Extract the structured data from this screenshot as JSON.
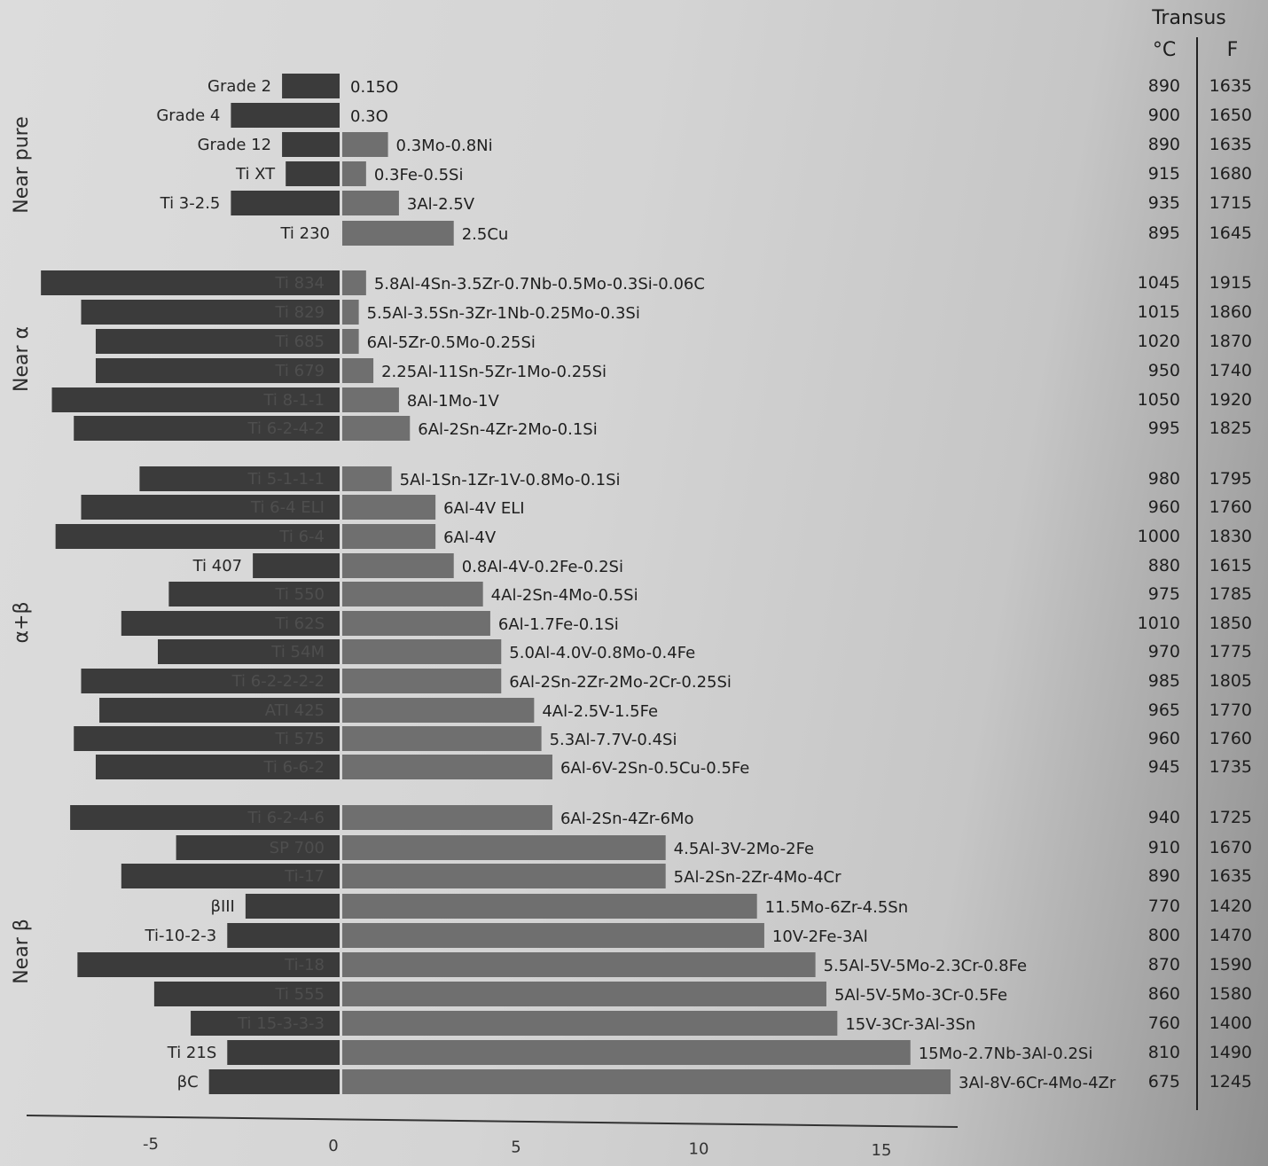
{
  "chart_data": {
    "type": "bar",
    "orientation": "horizontal-diverging",
    "xlim": [
      -8.2,
      17.2
    ],
    "x_ticks": [
      -5,
      0,
      5,
      10,
      15
    ],
    "transus_header": "Transus",
    "transus_units": [
      "°C",
      "F"
    ],
    "colors": {
      "left_bar": "#3b3b3b",
      "right_bar": "#6f6f6f"
    },
    "groups": [
      {
        "label": "Near pure",
        "rows": [
          {
            "name": "Grade 2",
            "left": -1.6,
            "right": 0,
            "composition": "0.15O",
            "transus_c": "890",
            "transus_f": "1635"
          },
          {
            "name": "Grade 4",
            "left": -3.0,
            "right": 0,
            "composition": "0.3O",
            "transus_c": "900",
            "transus_f": "1650"
          },
          {
            "name": "Grade 12",
            "left": -1.6,
            "right": 1.3,
            "composition": "0.3Mo-0.8Ni",
            "transus_c": "890",
            "transus_f": "1635"
          },
          {
            "name": "Ti XT",
            "left": -1.5,
            "right": 0.7,
            "composition": "0.3Fe-0.5Si",
            "transus_c": "915",
            "transus_f": "1680"
          },
          {
            "name": "Ti 3-2.5",
            "left": -3.0,
            "right": 1.6,
            "composition": "3Al-2.5V",
            "transus_c": "935",
            "transus_f": "1715"
          },
          {
            "name": "Ti 230",
            "left": 0,
            "right": 3.1,
            "composition": "2.5Cu",
            "transus_c": "895",
            "transus_f": "1645"
          }
        ]
      },
      {
        "label": "Near α",
        "rows": [
          {
            "name": "Ti 834",
            "left": -8.2,
            "right": 0.7,
            "composition": "5.8Al-4Sn-3.5Zr-0.7Nb-0.5Mo-0.3Si-0.06C",
            "transus_c": "1045",
            "transus_f": "1915"
          },
          {
            "name": "Ti 829",
            "left": -7.1,
            "right": 0.5,
            "composition": "5.5Al-3.5Sn-3Zr-1Nb-0.25Mo-0.3Si",
            "transus_c": "1015",
            "transus_f": "1860"
          },
          {
            "name": "Ti 685",
            "left": -6.7,
            "right": 0.5,
            "composition": "6Al-5Zr-0.5Mo-0.25Si",
            "transus_c": "1020",
            "transus_f": "1870"
          },
          {
            "name": "Ti 679",
            "left": -6.7,
            "right": 0.9,
            "composition": "2.25Al-11Sn-5Zr-1Mo-0.25Si",
            "transus_c": "950",
            "transus_f": "1740"
          },
          {
            "name": "Ti 8-1-1",
            "left": -7.9,
            "right": 1.6,
            "composition": "8Al-1Mo-1V",
            "transus_c": "1050",
            "transus_f": "1920"
          },
          {
            "name": "Ti 6-2-4-2",
            "left": -7.3,
            "right": 1.9,
            "composition": "6Al-2Sn-4Zr-2Mo-0.1Si",
            "transus_c": "995",
            "transus_f": "1825"
          }
        ]
      },
      {
        "label": "α+β",
        "rows": [
          {
            "name": "Ti 5-1-1-1",
            "left": -5.5,
            "right": 1.4,
            "composition": "5Al-1Sn-1Zr-1V-0.8Mo-0.1Si",
            "transus_c": "980",
            "transus_f": "1795"
          },
          {
            "name": "Ti 6-4 ELI",
            "left": -7.1,
            "right": 2.6,
            "composition": "6Al-4V ELI",
            "transus_c": "960",
            "transus_f": "1760"
          },
          {
            "name": "Ti 6-4",
            "left": -7.8,
            "right": 2.6,
            "composition": "6Al-4V",
            "transus_c": "1000",
            "transus_f": "1830"
          },
          {
            "name": "Ti 407",
            "left": -2.4,
            "right": 3.1,
            "composition": "0.8Al-4V-0.2Fe-0.2Si",
            "transus_c": "880",
            "transus_f": "1615"
          },
          {
            "name": "Ti 550",
            "left": -4.7,
            "right": 3.9,
            "composition": "4Al-2Sn-4Mo-0.5Si",
            "transus_c": "975",
            "transus_f": "1785"
          },
          {
            "name": "Ti 62S",
            "left": -6.0,
            "right": 4.1,
            "composition": "6Al-1.7Fe-0.1Si",
            "transus_c": "1010",
            "transus_f": "1850"
          },
          {
            "name": "Ti 54M",
            "left": -5.0,
            "right": 4.4,
            "composition": "5.0Al-4.0V-0.8Mo-0.4Fe",
            "transus_c": "970",
            "transus_f": "1775"
          },
          {
            "name": "Ti 6-2-2-2-2",
            "left": -7.1,
            "right": 4.4,
            "composition": "6Al-2Sn-2Zr-2Mo-2Cr-0.25Si",
            "transus_c": "985",
            "transus_f": "1805"
          },
          {
            "name": "ATI 425",
            "left": -6.6,
            "right": 5.3,
            "composition": "4Al-2.5V-1.5Fe",
            "transus_c": "965",
            "transus_f": "1770"
          },
          {
            "name": "Ti 575",
            "left": -7.3,
            "right": 5.5,
            "composition": "5.3Al-7.7V-0.4Si",
            "transus_c": "960",
            "transus_f": "1760"
          },
          {
            "name": "Ti 6-6-2",
            "left": -6.7,
            "right": 5.8,
            "composition": "6Al-6V-2Sn-0.5Cu-0.5Fe",
            "transus_c": "945",
            "transus_f": "1735"
          }
        ]
      },
      {
        "label": "Near β",
        "rows": [
          {
            "name": "Ti 6-2-4-6",
            "left": -7.4,
            "right": 5.8,
            "composition": "6Al-2Sn-4Zr-6Mo",
            "transus_c": "940",
            "transus_f": "1725"
          },
          {
            "name": "SP 700",
            "left": -4.5,
            "right": 8.9,
            "composition": "4.5Al-3V-2Mo-2Fe",
            "transus_c": "910",
            "transus_f": "1670"
          },
          {
            "name": "Ti-17",
            "left": -6.0,
            "right": 8.9,
            "composition": "5Al-2Sn-2Zr-4Mo-4Cr",
            "transus_c": "890",
            "transus_f": "1635"
          },
          {
            "name": "βIII",
            "left": -2.6,
            "right": 11.4,
            "composition": "11.5Mo-6Zr-4.5Sn",
            "transus_c": "770",
            "transus_f": "1420"
          },
          {
            "name": "Ti-10-2-3",
            "left": -3.1,
            "right": 11.6,
            "composition": "10V-2Fe-3Al",
            "transus_c": "800",
            "transus_f": "1470"
          },
          {
            "name": "Ti-18",
            "left": -7.2,
            "right": 13.0,
            "composition": "5.5Al-5V-5Mo-2.3Cr-0.8Fe",
            "transus_c": "870",
            "transus_f": "1590"
          },
          {
            "name": "Ti 555",
            "left": -5.1,
            "right": 13.3,
            "composition": "5Al-5V-5Mo-3Cr-0.5Fe",
            "transus_c": "860",
            "transus_f": "1580"
          },
          {
            "name": "Ti 15-3-3-3",
            "left": -4.1,
            "right": 13.6,
            "composition": "15V-3Cr-3Al-3Sn",
            "transus_c": "760",
            "transus_f": "1400"
          },
          {
            "name": "Ti 21S",
            "left": -3.1,
            "right": 15.6,
            "composition": "15Mo-2.7Nb-3Al-0.2Si",
            "transus_c": "810",
            "transus_f": "1490"
          },
          {
            "name": "βC",
            "left": -3.6,
            "right": 16.7,
            "composition": "3Al-8V-6Cr-4Mo-4Zr",
            "transus_c": "675",
            "transus_f": "1245"
          }
        ]
      }
    ]
  }
}
